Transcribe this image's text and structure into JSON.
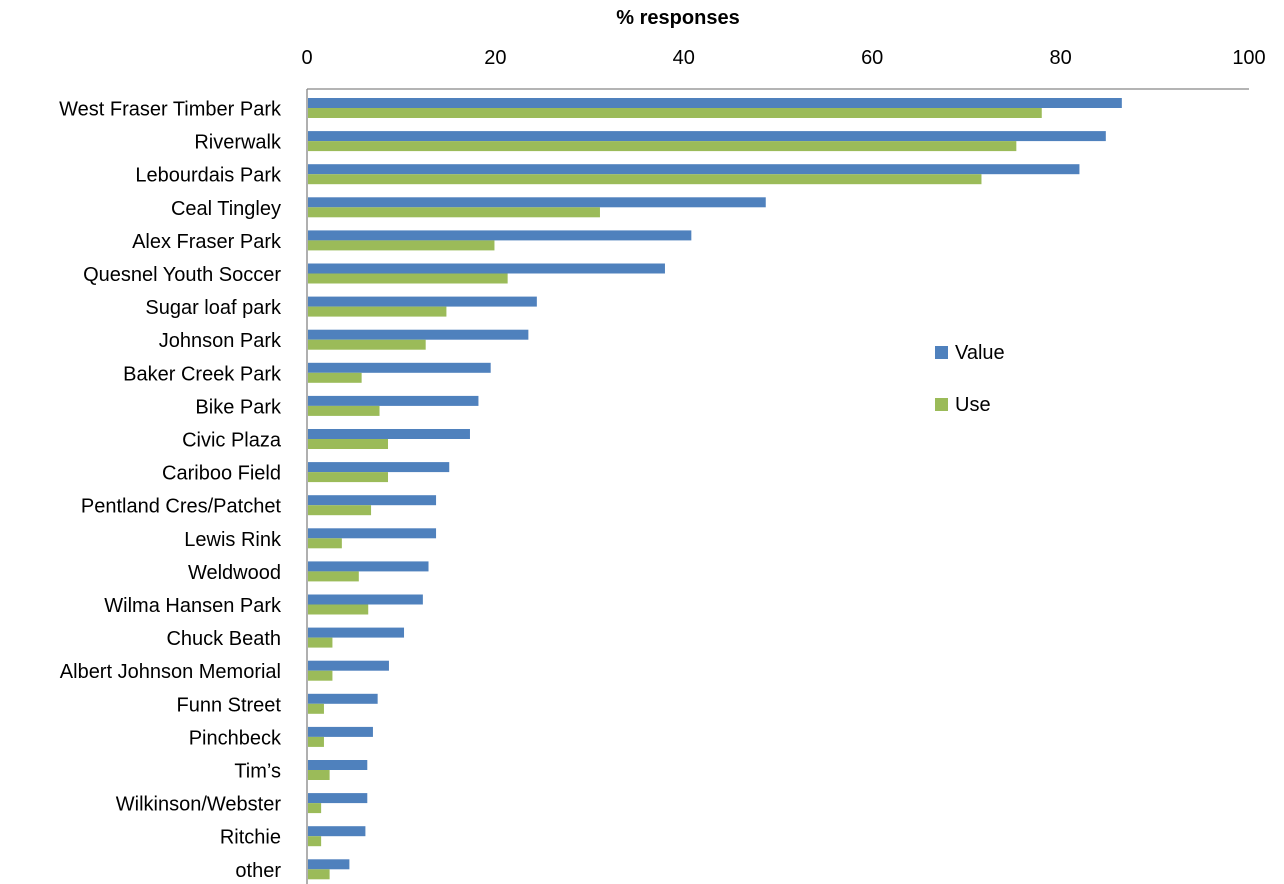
{
  "chart_data": {
    "type": "bar",
    "orientation": "horizontal",
    "title": "",
    "xlabel": "% responses",
    "ylabel": "",
    "xlim": [
      0,
      100
    ],
    "x_ticks": [
      "0",
      "20",
      "40",
      "60",
      "80",
      "100"
    ],
    "x_axis_position": "top",
    "grid": false,
    "legend_position": "right",
    "categories": [
      "West Fraser Timber Park",
      "Riverwalk",
      "Lebourdais Park",
      "Ceal Tingley",
      "Alex Fraser Park",
      "Quesnel Youth Soccer",
      "Sugar loaf park",
      "Johnson Park",
      "Baker Creek Park",
      "Bike Park",
      "Civic Plaza",
      "Cariboo Field",
      "Pentland Cres/Patchet",
      "Lewis Rink",
      "Weldwood",
      "Wilma Hansen Park",
      "Chuck Beath",
      "Albert Johnson Memorial",
      "Funn Street",
      "Pinchbeck",
      "Tim’s",
      "Wilkinson/Webster",
      "Ritchie",
      "other"
    ],
    "series": [
      {
        "name": "Value",
        "color": "#4F81BD",
        "values": [
          86.5,
          84.8,
          82.0,
          48.7,
          40.8,
          38.0,
          24.4,
          23.5,
          19.5,
          18.2,
          17.3,
          15.1,
          13.7,
          13.7,
          12.9,
          12.3,
          10.3,
          8.7,
          7.5,
          7.0,
          6.4,
          6.4,
          6.2,
          4.5
        ]
      },
      {
        "name": "Use",
        "color": "#9BBB59",
        "values": [
          78.0,
          75.3,
          71.6,
          31.1,
          19.9,
          21.3,
          14.8,
          12.6,
          5.8,
          7.7,
          8.6,
          8.6,
          6.8,
          3.7,
          5.5,
          6.5,
          2.7,
          2.7,
          1.8,
          1.8,
          2.4,
          1.5,
          1.5,
          2.4
        ]
      }
    ]
  }
}
